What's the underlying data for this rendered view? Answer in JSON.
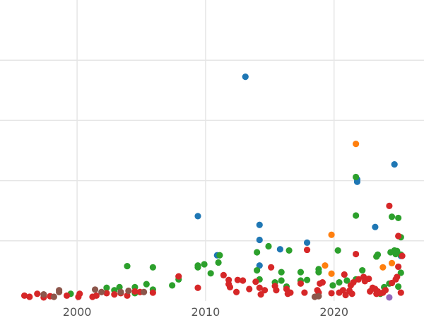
{
  "chart_data": {
    "type": "scatter",
    "title": "",
    "xlabel": "",
    "ylabel": "",
    "xlim": [
      1994,
      2027
    ],
    "ylim": [
      0,
      100
    ],
    "grid": true,
    "legend": "none",
    "x_ticks": [
      {
        "value": 2000,
        "label": "2000"
      },
      {
        "value": 2010,
        "label": "2010"
      },
      {
        "value": 2020,
        "label": "2020"
      }
    ],
    "y_gridlines": [
      20,
      40,
      60,
      80
    ],
    "series": [
      {
        "color": "#1f77b4",
        "points": [
          [
            2013.1,
            74.5
          ],
          [
            2009.4,
            28.2
          ],
          [
            2010.9,
            15.2
          ],
          [
            2014.2,
            25.3
          ],
          [
            2014.2,
            20.3
          ],
          [
            2014.2,
            11.8
          ],
          [
            2015.8,
            17.2
          ],
          [
            2017.9,
            19.4
          ],
          [
            2021.8,
            40.4
          ],
          [
            2021.8,
            39.6
          ],
          [
            2023.2,
            24.6
          ],
          [
            2024.7,
            45.4
          ],
          [
            2025.2,
            15.0
          ]
        ]
      },
      {
        "color": "#ff7f0e",
        "points": [
          [
            2021.7,
            52.2
          ],
          [
            2019.8,
            22.0
          ],
          [
            2019.3,
            11.8
          ],
          [
            2019.8,
            9.1
          ],
          [
            2023.3,
            14.8
          ],
          [
            2023.8,
            11.2
          ],
          [
            2024.5,
            12.6
          ]
        ]
      },
      {
        "color": "#2ca02c",
        "points": [
          [
            1999.5,
            2.4
          ],
          [
            2002.3,
            4.4
          ],
          [
            2002.9,
            3.6
          ],
          [
            2003.3,
            4.6
          ],
          [
            2003.9,
            11.6
          ],
          [
            2004.5,
            4.6
          ],
          [
            2004.5,
            2.6
          ],
          [
            2005.4,
            5.6
          ],
          [
            2005.9,
            3.8
          ],
          [
            2005.9,
            11.2
          ],
          [
            2007.4,
            5.2
          ],
          [
            2007.9,
            7.2
          ],
          [
            2009.4,
            11.2
          ],
          [
            2009.4,
            11.8
          ],
          [
            2009.9,
            12.2
          ],
          [
            2010.4,
            9.2
          ],
          [
            2011.0,
            12.8
          ],
          [
            2011.1,
            15.2
          ],
          [
            2014.0,
            16.2
          ],
          [
            2014.0,
            10.2
          ],
          [
            2014.2,
            7.2
          ],
          [
            2014.9,
            18.2
          ],
          [
            2015.4,
            6.2
          ],
          [
            2015.9,
            6.8
          ],
          [
            2015.9,
            9.6
          ],
          [
            2016.3,
            4.8
          ],
          [
            2016.5,
            16.8
          ],
          [
            2017.4,
            9.6
          ],
          [
            2017.4,
            6.8
          ],
          [
            2017.9,
            7.0
          ],
          [
            2018.8,
            9.6
          ],
          [
            2018.8,
            10.6
          ],
          [
            2019.9,
            5.2
          ],
          [
            2020.3,
            16.8
          ],
          [
            2020.4,
            6.2
          ],
          [
            2021.0,
            6.8
          ],
          [
            2021.7,
            41.2
          ],
          [
            2021.7,
            28.4
          ],
          [
            2021.7,
            7.2
          ],
          [
            2022.2,
            10.2
          ],
          [
            2023.3,
            14.8
          ],
          [
            2023.4,
            15.4
          ],
          [
            2023.6,
            2.4
          ],
          [
            2023.9,
            4.6
          ],
          [
            2024.4,
            16.2
          ],
          [
            2024.5,
            28.0
          ],
          [
            2024.7,
            16.8
          ],
          [
            2024.8,
            15.6
          ],
          [
            2024.9,
            16.6
          ],
          [
            2025.0,
            27.6
          ],
          [
            2025.2,
            21.2
          ],
          [
            2025.2,
            15.4
          ],
          [
            2025.2,
            9.4
          ],
          [
            2025.0,
            4.8
          ],
          [
            2024.3,
            5.8
          ]
        ]
      },
      {
        "color": "#d62728",
        "points": [
          [
            1995.9,
            1.8
          ],
          [
            1996.3,
            1.4
          ],
          [
            1996.9,
            2.4
          ],
          [
            1997.4,
            1.2
          ],
          [
            1997.9,
            1.6
          ],
          [
            1999.2,
            1.8
          ],
          [
            2000.1,
            1.4
          ],
          [
            2000.2,
            2.4
          ],
          [
            2001.2,
            1.4
          ],
          [
            2001.5,
            1.8
          ],
          [
            2002.3,
            2.6
          ],
          [
            2002.9,
            2.2
          ],
          [
            2003.4,
            2.6
          ],
          [
            2003.9,
            1.8
          ],
          [
            2004.5,
            3.2
          ],
          [
            2004.9,
            3.0
          ],
          [
            2005.9,
            2.8
          ],
          [
            2007.9,
            8.2
          ],
          [
            2009.4,
            4.4
          ],
          [
            2011.4,
            8.6
          ],
          [
            2011.8,
            7.0
          ],
          [
            2011.8,
            5.6
          ],
          [
            2011.9,
            4.6
          ],
          [
            2012.4,
            3.0
          ],
          [
            2012.5,
            7.0
          ],
          [
            2012.9,
            6.8
          ],
          [
            2013.4,
            4.0
          ],
          [
            2013.9,
            6.4
          ],
          [
            2014.2,
            4.4
          ],
          [
            2014.3,
            2.2
          ],
          [
            2014.6,
            3.6
          ],
          [
            2015.1,
            11.2
          ],
          [
            2015.4,
            5.0
          ],
          [
            2015.5,
            3.6
          ],
          [
            2016.3,
            4.0
          ],
          [
            2016.4,
            2.4
          ],
          [
            2016.6,
            2.8
          ],
          [
            2017.4,
            5.8
          ],
          [
            2017.7,
            2.8
          ],
          [
            2017.9,
            17.0
          ],
          [
            2018.7,
            3.6
          ],
          [
            2018.8,
            2.8
          ],
          [
            2018.9,
            5.8
          ],
          [
            2019.1,
            6.2
          ],
          [
            2019.8,
            2.6
          ],
          [
            2020.4,
            2.8
          ],
          [
            2020.7,
            3.6
          ],
          [
            2020.8,
            8.8
          ],
          [
            2020.9,
            2.0
          ],
          [
            2021.2,
            3.4
          ],
          [
            2021.3,
            5.2
          ],
          [
            2021.4,
            2.4
          ],
          [
            2021.5,
            6.2
          ],
          [
            2021.7,
            15.6
          ],
          [
            2021.9,
            7.2
          ],
          [
            2022.3,
            8.0
          ],
          [
            2022.4,
            6.6
          ],
          [
            2022.7,
            7.4
          ],
          [
            2022.8,
            3.2
          ],
          [
            2023.0,
            4.4
          ],
          [
            2023.2,
            4.0
          ],
          [
            2023.3,
            2.4
          ],
          [
            2023.4,
            3.2
          ],
          [
            2023.6,
            2.6
          ],
          [
            2023.8,
            2.8
          ],
          [
            2024.0,
            3.6
          ],
          [
            2024.3,
            31.6
          ],
          [
            2024.5,
            6.0
          ],
          [
            2024.8,
            7.2
          ],
          [
            2024.9,
            8.0
          ],
          [
            2025.0,
            21.6
          ],
          [
            2025.0,
            11.4
          ],
          [
            2025.2,
            2.8
          ],
          [
            2025.3,
            15.0
          ]
        ]
      },
      {
        "color": "#9467bd",
        "points": [
          [
            2024.3,
            1.2
          ]
        ]
      },
      {
        "color": "#8c564b",
        "points": [
          [
            1997.4,
            2.2
          ],
          [
            1998.2,
            1.4
          ],
          [
            1998.6,
            3.0
          ],
          [
            1998.6,
            3.6
          ],
          [
            2001.4,
            3.8
          ],
          [
            2001.9,
            3.0
          ],
          [
            2003.4,
            3.0
          ],
          [
            2004.0,
            3.4
          ],
          [
            2005.2,
            3.0
          ],
          [
            2018.5,
            1.4
          ],
          [
            2018.8,
            1.6
          ]
        ]
      }
    ]
  }
}
